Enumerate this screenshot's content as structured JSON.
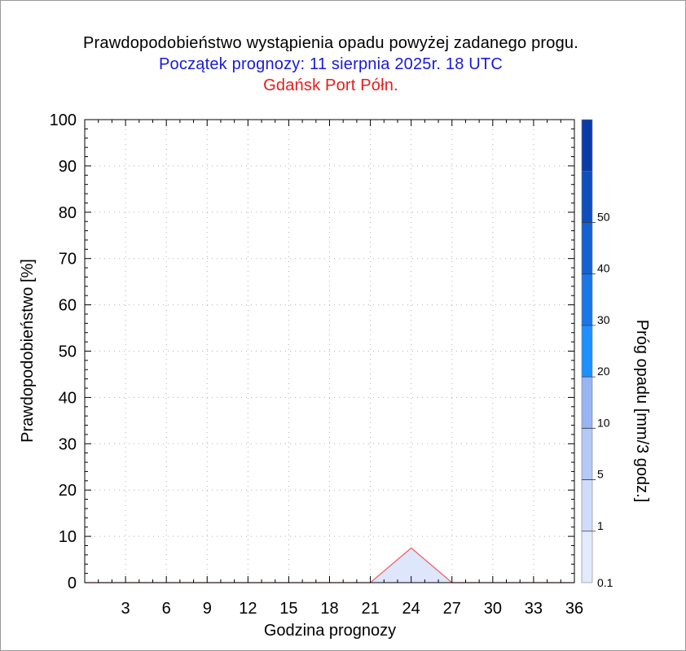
{
  "titles": {
    "main": "Prawdopodobieństwo wystąpienia opadu powyżej zadanego progu.",
    "forecast_start": "Początek prognozy: 11 sierpnia 2025r. 18 UTC",
    "location": "Gdańsk Port Półn."
  },
  "colors": {
    "forecast_start": "#1a1ad6",
    "location": "#e81c1c",
    "series_fill": "#dde6fb",
    "series_stroke": "#f06464"
  },
  "chart_data": {
    "type": "area",
    "xlabel": "Godzina prognozy",
    "ylabel": "Prawdopodobieństwo [%]",
    "x_ticks": [
      3,
      6,
      9,
      12,
      15,
      18,
      21,
      24,
      27,
      30,
      33,
      36
    ],
    "y_ticks": [
      0,
      10,
      20,
      30,
      40,
      50,
      60,
      70,
      80,
      90,
      100
    ],
    "xlim": [
      0,
      36
    ],
    "ylim": [
      0,
      100
    ],
    "grid": true,
    "series": [
      {
        "name": "0.1",
        "x": [
          0,
          3,
          6,
          9,
          12,
          15,
          18,
          21,
          24,
          27,
          30,
          33,
          36
        ],
        "values": [
          0,
          0,
          0,
          0,
          0,
          0,
          0,
          0,
          7.5,
          0,
          0,
          0,
          0
        ]
      }
    ],
    "colorbar": {
      "label": "Próg opadu [mm/3 godz.]",
      "levels": [
        "0.1",
        "1",
        "5",
        "10",
        "20",
        "30",
        "40",
        "50"
      ],
      "colors": [
        "#e3eafc",
        "#cfdcfa",
        "#b5c9f7",
        "#98b4f3",
        "#1e90ff",
        "#1a78e6",
        "#1462d2",
        "#0f4fbd",
        "#0a3ca8"
      ]
    }
  }
}
